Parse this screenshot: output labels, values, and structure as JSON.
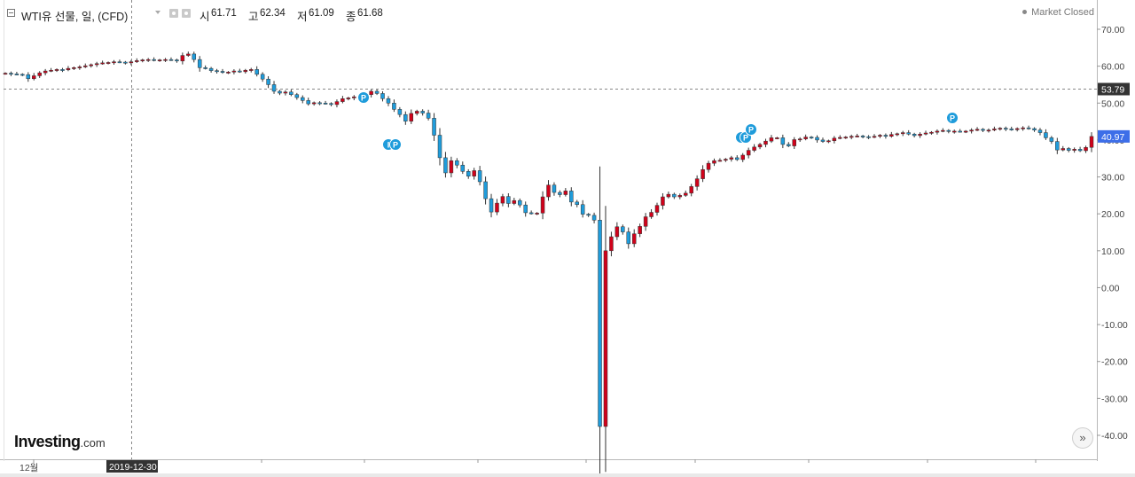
{
  "header": {
    "title": "WTI유 선물, 일, (CFD)",
    "open_label": "시",
    "open_value": "61.71",
    "high_label": "고",
    "high_value": "62.34",
    "low_label": "저",
    "low_value": "61.09",
    "close_label": "종",
    "close_value": "61.68"
  },
  "status": "Market Closed",
  "logo": {
    "main": "Investing",
    "suffix": ".com"
  },
  "scroll_icon": "»",
  "colors": {
    "up": "#d0021b",
    "down": "#1f9cdb",
    "crosshair_label": "#333333",
    "last_price": "#3d6ee8"
  },
  "chart_data": {
    "type": "candlestick",
    "ylim": [
      -40,
      70
    ],
    "y_ticks": [
      "70.00",
      "60.00",
      "50.00",
      "40.00",
      "30.00",
      "20.00",
      "10.00",
      "0.00",
      "-10.00",
      "-20.00",
      "-30.00",
      "-40.00"
    ],
    "x_labels": [
      "12월",
      "2019-12-30"
    ],
    "crosshair_value": "53.79",
    "last_price": "40.97",
    "markers": [
      "P",
      "I",
      "P",
      "I",
      "P",
      "P"
    ],
    "series": [
      {
        "name": "WTI",
        "values": [
          58.1,
          57.9,
          57.8,
          57.7,
          56.6,
          57.4,
          58.2,
          58.7,
          58.9,
          59.1,
          59.0,
          59.4,
          59.6,
          59.8,
          60.1,
          60.4,
          60.7,
          60.9,
          61.0,
          61.2,
          61.1,
          60.9,
          61.2,
          61.5,
          61.7,
          61.8,
          61.6,
          61.7,
          61.8,
          61.7,
          61.4,
          62.9,
          63.3,
          61.8,
          59.6,
          59.4,
          58.8,
          58.6,
          58.3,
          58.4,
          58.7,
          58.5,
          58.9,
          59.1,
          57.8,
          56.5,
          55.0,
          53.2,
          52.7,
          53.0,
          52.3,
          51.5,
          50.7,
          49.8,
          50.1,
          50.0,
          49.9,
          49.6,
          50.4,
          51.2,
          51.4,
          51.7,
          52.0,
          52.3,
          53.2,
          52.6,
          51.2,
          50.0,
          48.3,
          46.9,
          45.1,
          47.2,
          47.8,
          47.3,
          45.9,
          41.3,
          35.2,
          31.1,
          34.4,
          33.2,
          31.5,
          30.2,
          31.7,
          28.7,
          24.1,
          20.5,
          22.9,
          24.7,
          22.8,
          23.6,
          22.4,
          20.3,
          20.1,
          20.2,
          24.6,
          27.8,
          25.8,
          25.2,
          26.2,
          23.2,
          22.5,
          19.9,
          19.6,
          18.3,
          -37.6,
          10.0,
          13.8,
          16.5,
          15.1,
          11.9,
          14.6,
          16.6,
          19.2,
          20.4,
          22.3,
          24.6,
          25.3,
          24.6,
          25.0,
          25.6,
          27.4,
          29.5,
          32.0,
          33.7,
          34.4,
          34.5,
          34.8,
          35.2,
          34.7,
          35.9,
          37.2,
          38.1,
          38.8,
          39.7,
          40.6,
          40.6,
          38.8,
          38.4,
          40.1,
          40.3,
          40.8,
          40.7,
          40.0,
          39.6,
          39.8,
          40.5,
          40.7,
          40.8,
          41.0,
          41.1,
          40.9,
          40.8,
          41.0,
          41.3,
          41.0,
          41.5,
          41.7,
          42.0,
          41.6,
          41.2,
          41.6,
          41.9,
          42.1,
          42.4,
          42.6,
          42.3,
          42.4,
          42.3,
          42.4,
          42.7,
          42.9,
          42.6,
          42.7,
          43.0,
          43.2,
          43.0,
          42.8,
          43.1,
          43.3,
          43.1,
          42.7,
          42.0,
          40.6,
          39.6,
          37.3,
          37.7,
          37.2,
          37.5,
          37.1,
          38.0,
          40.97
        ]
      }
    ]
  }
}
